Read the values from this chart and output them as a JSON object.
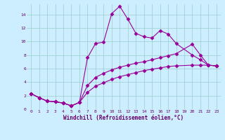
{
  "xlabel": "Windchill (Refroidissement éolien,°C)",
  "background_color": "#cceeff",
  "line_color": "#990099",
  "marker": "D",
  "markersize": 2.5,
  "linewidth": 0.8,
  "xlim": [
    -0.5,
    23.5
  ],
  "ylim": [
    0,
    15.5
  ],
  "xticks": [
    0,
    1,
    2,
    3,
    4,
    5,
    6,
    7,
    8,
    9,
    10,
    11,
    12,
    13,
    14,
    15,
    16,
    17,
    18,
    19,
    20,
    21,
    22,
    23
  ],
  "yticks": [
    0,
    2,
    4,
    6,
    8,
    10,
    12,
    14
  ],
  "grid_color": "#99cccc",
  "series": [
    {
      "x": [
        0,
        1,
        2,
        3,
        4,
        5,
        6,
        7,
        8,
        9,
        10,
        11,
        12,
        13,
        14,
        15,
        16,
        17,
        18,
        20,
        21,
        22,
        23
      ],
      "y": [
        2.3,
        1.7,
        1.2,
        1.1,
        0.9,
        0.5,
        1.0,
        7.6,
        9.7,
        9.9,
        14.1,
        15.2,
        13.3,
        11.2,
        10.7,
        10.5,
        11.6,
        11.1,
        9.7,
        8.0,
        7.3,
        6.5,
        6.4
      ]
    },
    {
      "x": [
        0,
        1,
        2,
        3,
        4,
        5,
        6,
        7,
        8,
        9,
        10,
        11,
        12,
        13,
        14,
        15,
        16,
        17,
        18,
        20,
        21,
        22,
        23
      ],
      "y": [
        2.3,
        1.7,
        1.2,
        1.1,
        0.9,
        0.5,
        1.0,
        3.5,
        4.7,
        5.3,
        5.8,
        6.2,
        6.5,
        6.8,
        7.0,
        7.3,
        7.6,
        7.9,
        8.2,
        9.6,
        8.0,
        6.5,
        6.4
      ]
    },
    {
      "x": [
        0,
        1,
        2,
        3,
        4,
        5,
        6,
        7,
        8,
        9,
        10,
        11,
        12,
        13,
        14,
        15,
        16,
        17,
        18,
        20,
        21,
        22,
        23
      ],
      "y": [
        2.3,
        1.7,
        1.2,
        1.1,
        0.9,
        0.5,
        1.0,
        2.5,
        3.4,
        3.9,
        4.4,
        4.8,
        5.1,
        5.4,
        5.7,
        5.9,
        6.1,
        6.3,
        6.4,
        6.5,
        6.5,
        6.5,
        6.4
      ]
    }
  ]
}
